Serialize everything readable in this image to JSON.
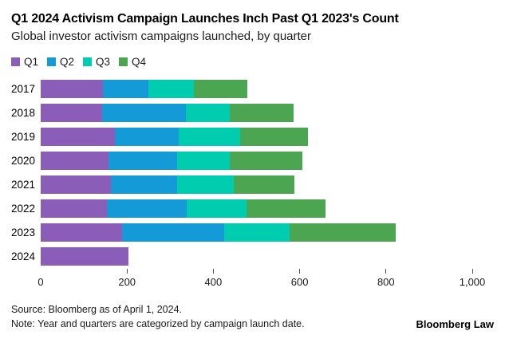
{
  "header": {
    "title": "Q1 2024 Activism Campaign Launches Inch Past Q1 2023's Count",
    "subtitle": "Global investor activism campaigns launched, by quarter"
  },
  "chart_data": {
    "type": "bar",
    "orientation": "horizontal",
    "stacked": true,
    "title": "Q1 2024 Activism Campaign Launches Inch Past Q1 2023's Count",
    "subtitle": "Global investor activism campaigns launched, by quarter",
    "categories": [
      "2017",
      "2018",
      "2019",
      "2020",
      "2021",
      "2022",
      "2023",
      "2024"
    ],
    "series": [
      {
        "name": "Q1",
        "color": "#8a5eb8",
        "values": [
          144,
          142,
          171,
          157,
          163,
          153,
          188,
          203
        ]
      },
      {
        "name": "Q2",
        "color": "#149bd7",
        "values": [
          105,
          194,
          149,
          160,
          153,
          185,
          237,
          0
        ]
      },
      {
        "name": "Q3",
        "color": "#00cdb0",
        "values": [
          106,
          102,
          142,
          122,
          132,
          138,
          152,
          0
        ]
      },
      {
        "name": "Q4",
        "color": "#4ca551",
        "values": [
          123,
          148,
          157,
          167,
          140,
          183,
          245,
          0
        ]
      }
    ],
    "xlabel": "",
    "ylabel": "",
    "xlim": [
      0,
      1000
    ],
    "xticks": [
      0,
      200,
      400,
      600,
      800,
      1000
    ],
    "xtick_labels": [
      "0",
      "200",
      "400",
      "600",
      "800",
      "1,000"
    ],
    "grid": false,
    "legend_position": "top"
  },
  "footer": {
    "source": "Source: Bloomberg as of April 1, 2024.",
    "note": "Note: Year and quarters are categorized by campaign launch date.",
    "brand": "Bloomberg Law"
  }
}
